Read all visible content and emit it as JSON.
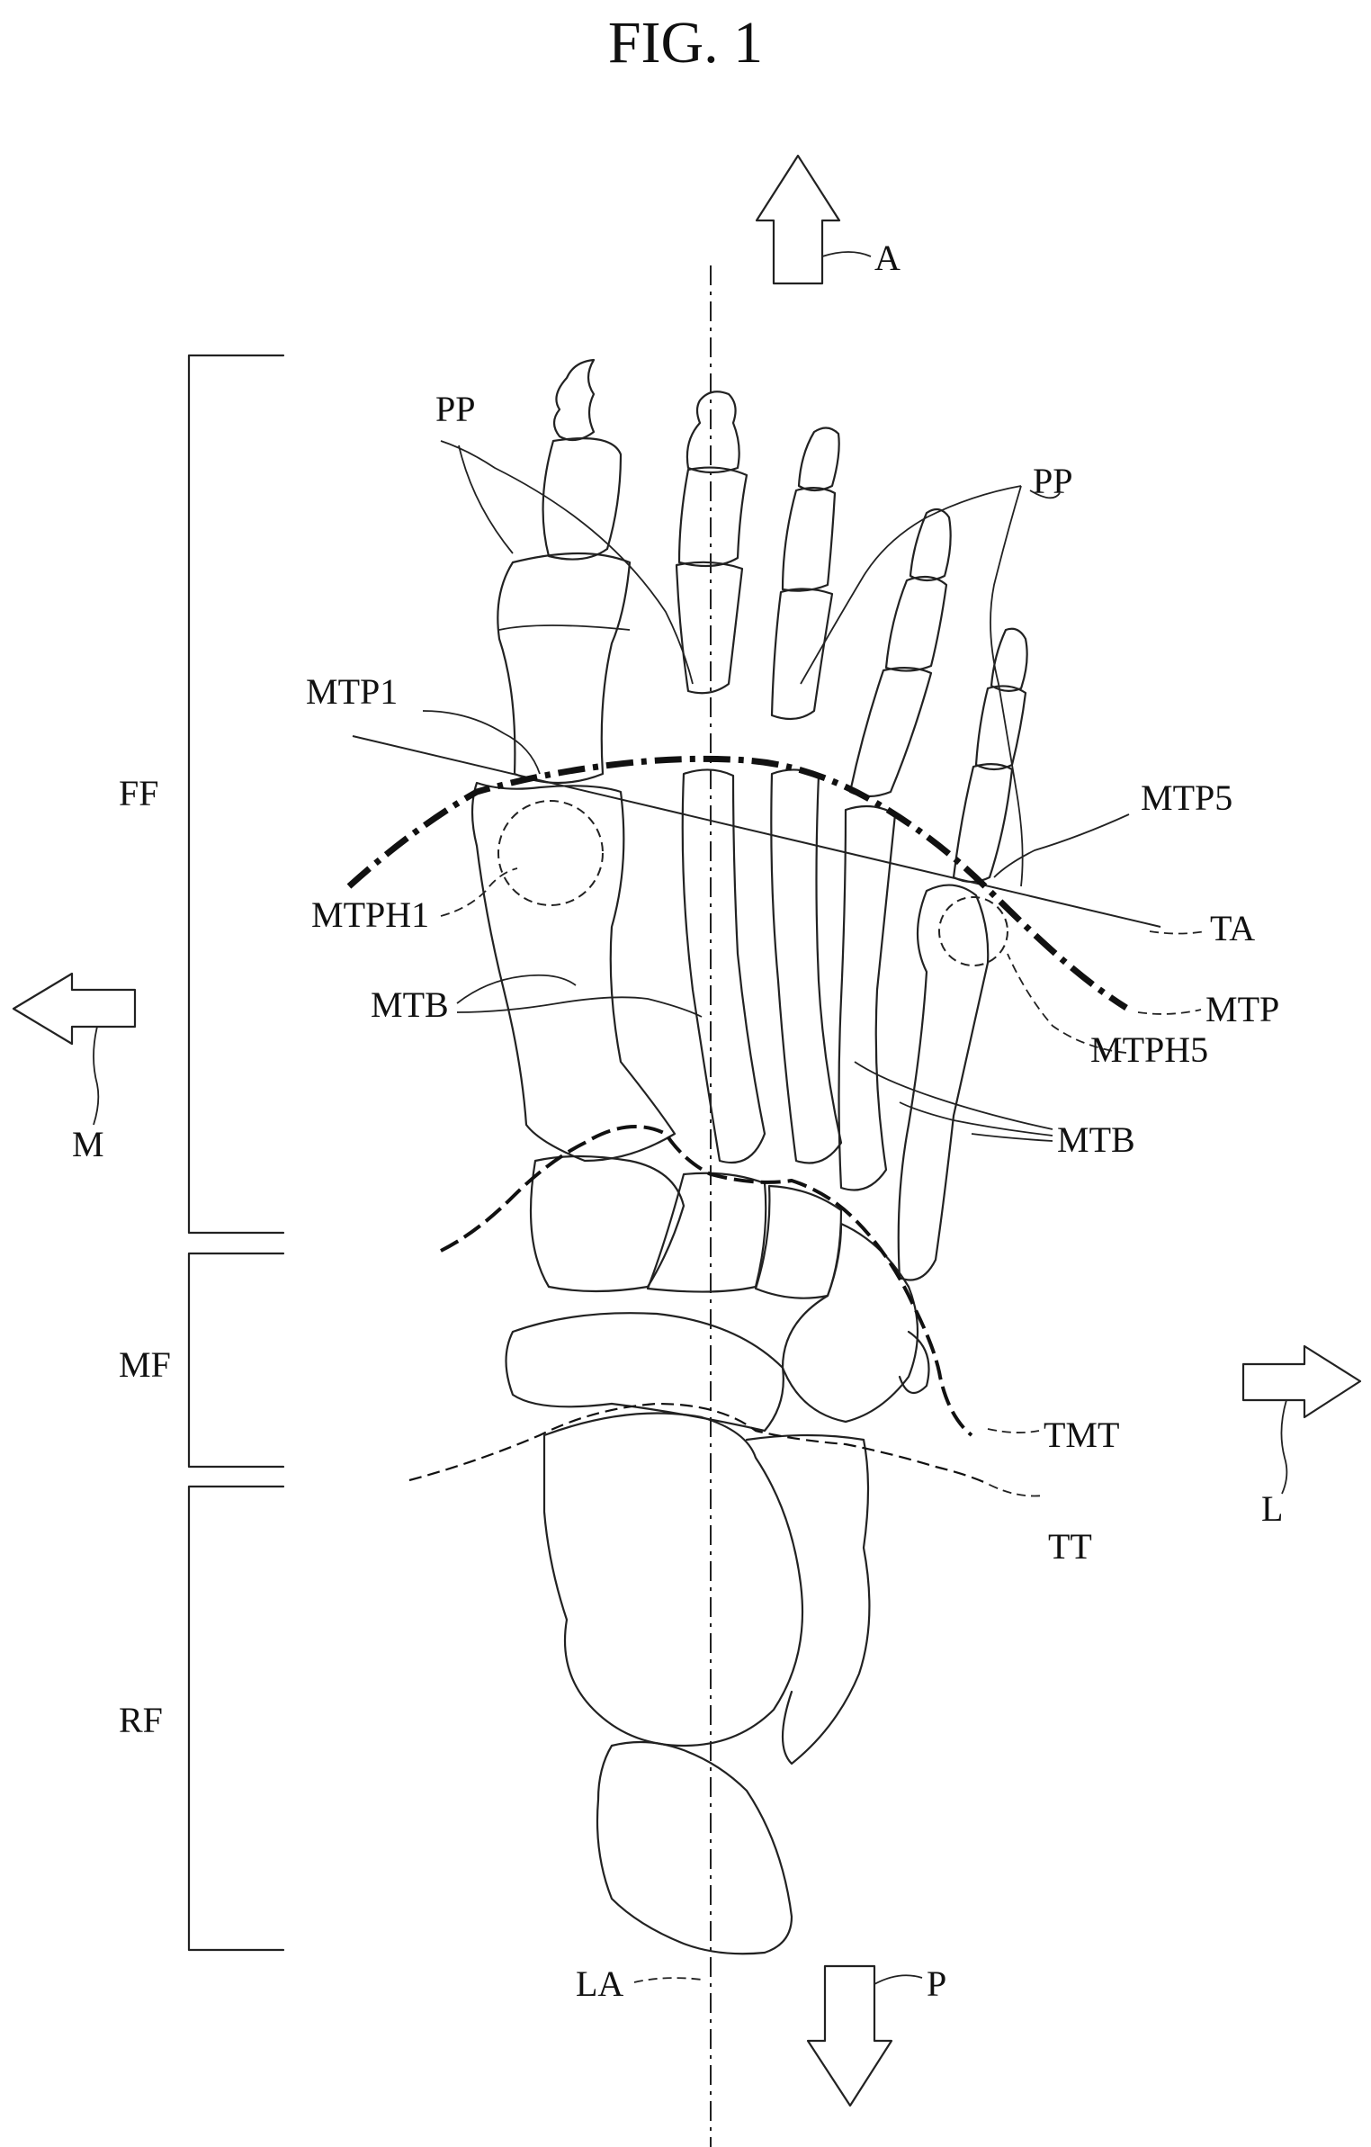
{
  "title": "FIG. 1",
  "labels": {
    "A": "A",
    "P": "P",
    "M": "M",
    "L": "L",
    "LA": "LA",
    "PP_left": "PP",
    "PP_right": "PP",
    "MTP1": "MTP1",
    "MTP5": "MTP5",
    "MTPH1": "MTPH1",
    "MTPH5": "MTPH5",
    "TA": "TA",
    "MTP": "MTP",
    "MTB_left": "MTB",
    "MTB_right": "MTB",
    "TMT": "TMT",
    "TT": "TT",
    "FF": "FF",
    "MF": "MF",
    "RF": "RF"
  }
}
